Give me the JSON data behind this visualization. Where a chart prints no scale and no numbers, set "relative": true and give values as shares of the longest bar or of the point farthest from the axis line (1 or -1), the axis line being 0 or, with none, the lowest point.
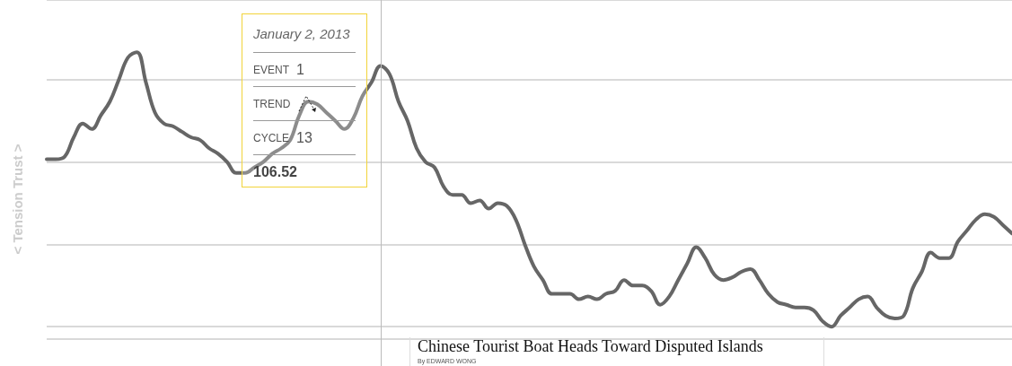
{
  "chart_data": {
    "type": "line",
    "relative": true,
    "grid": "y",
    "marker": "none",
    "line_style": "solid",
    "ylabel": "< Tension Trust >",
    "categories": [
      null,
      null,
      null,
      null,
      null,
      null,
      null,
      null,
      null,
      null,
      null,
      null,
      null,
      null,
      null,
      null,
      null,
      null,
      null,
      null,
      null,
      null,
      null,
      null,
      null,
      null,
      null,
      null,
      null,
      null,
      null,
      null,
      null,
      null,
      null,
      null,
      null,
      null,
      null,
      null,
      null,
      null,
      null,
      null,
      null,
      null,
      null,
      null,
      null,
      null,
      null,
      null,
      null,
      null,
      null,
      null,
      null,
      null,
      null,
      null,
      null,
      null,
      null,
      null,
      null,
      null,
      null,
      null,
      null,
      null,
      null,
      null,
      null,
      null,
      null,
      null,
      null,
      null,
      null,
      null,
      null,
      null,
      null,
      null,
      null,
      null,
      null,
      null,
      null,
      null,
      null,
      null,
      null,
      null,
      null,
      null,
      null,
      null,
      null,
      null,
      null,
      null,
      null,
      null,
      null,
      null,
      null,
      null
    ],
    "series": [
      {
        "color": "#666666",
        "values": [
          0.61,
          0.61,
          0.62,
          0.69,
          0.74,
          0.72,
          0.77,
          0.82,
          0.9,
          0.98,
          1.0,
          0.89,
          0.78,
          0.74,
          0.73,
          0.71,
          0.69,
          0.68,
          0.65,
          0.63,
          0.6,
          0.56,
          0.56,
          0.58,
          0.6,
          0.63,
          0.65,
          0.68,
          0.77,
          0.82,
          0.81,
          0.78,
          0.75,
          0.72,
          0.76,
          0.84,
          0.89,
          0.95,
          0.92,
          0.82,
          0.75,
          0.65,
          0.6,
          0.58,
          0.51,
          0.48,
          0.48,
          0.45,
          0.46,
          0.43,
          0.45,
          0.44,
          0.39,
          0.3,
          0.22,
          0.17,
          0.12,
          0.12,
          0.12,
          0.1,
          0.11,
          0.1,
          0.12,
          0.13,
          0.17,
          0.15,
          0.15,
          0.13,
          0.08,
          0.11,
          0.17,
          0.23,
          0.29,
          0.25,
          0.19,
          0.17,
          0.18,
          0.2,
          0.21,
          0.17,
          0.12,
          0.09,
          0.08,
          0.07,
          0.07,
          0.06,
          0.02,
          0.0,
          0.04,
          0.07,
          0.1,
          0.11,
          0.07,
          0.04,
          0.03,
          0.04,
          0.14,
          0.2,
          0.27,
          0.25,
          0.25,
          0.31,
          0.35,
          0.39,
          0.41,
          0.4,
          0.37,
          0.34
        ]
      }
    ],
    "annotations": [
      "January 2, 2013",
      "EVENT",
      "1",
      "TREND",
      "CYCLE",
      "13",
      "106.52",
      "Chinese Tourist Boat Heads Toward Disputed Islands",
      "By EDWARD WONG"
    ]
  }
}
